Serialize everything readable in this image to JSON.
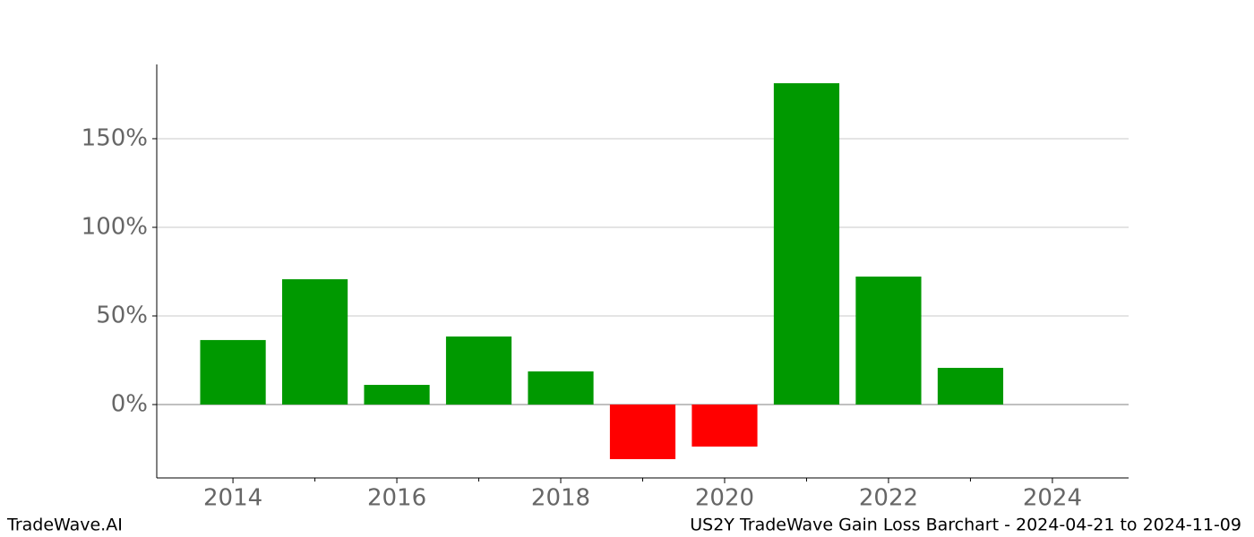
{
  "chart_data": {
    "type": "bar",
    "title": "US2Y TradeWave Gain Loss Barchart - 2024-04-21 to 2024-11-09",
    "brand": "TradeWave.AI",
    "x": [
      2014,
      2015,
      2016,
      2017,
      2018,
      2019,
      2020,
      2021,
      2022,
      2023
    ],
    "values": [
      36.4,
      70.7,
      11.1,
      38.4,
      18.7,
      -30.8,
      -23.7,
      181.3,
      72.2,
      20.7
    ],
    "positive_color": "#009900",
    "negative_color": "#ff0000",
    "xlim": [
      2013.07,
      2024.93
    ],
    "xticks": [
      2014,
      2016,
      2018,
      2020,
      2022,
      2024
    ],
    "xticks_minor": [
      2015,
      2017,
      2019,
      2021,
      2023
    ],
    "ylim": [
      -41.4,
      191.9
    ],
    "yticks": [
      {
        "value": 0,
        "label": "0%"
      },
      {
        "value": 50,
        "label": "50%"
      },
      {
        "value": 100,
        "label": "100%"
      },
      {
        "value": 150,
        "label": "150%"
      }
    ],
    "grid": true
  }
}
